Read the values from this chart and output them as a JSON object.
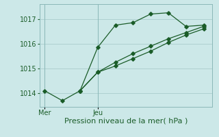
{
  "bg_color": "#cce8e8",
  "grid_color": "#aacccc",
  "line_color": "#1a5c28",
  "marker_color": "#1a5c28",
  "line1_x": [
    0,
    1,
    2,
    3,
    4,
    5,
    6,
    7,
    8,
    9
  ],
  "line1_y": [
    1014.1,
    1013.7,
    1014.1,
    1015.85,
    1016.75,
    1016.85,
    1017.2,
    1017.25,
    1016.7,
    1016.75
  ],
  "line2_x": [
    2,
    3,
    4,
    5,
    6,
    7,
    8,
    9
  ],
  "line2_y": [
    1014.1,
    1014.85,
    1015.1,
    1015.4,
    1015.7,
    1016.05,
    1016.35,
    1016.6
  ],
  "line3_x": [
    2,
    3,
    4,
    5,
    6,
    7,
    8,
    9
  ],
  "line3_y": [
    1014.1,
    1014.85,
    1015.25,
    1015.6,
    1015.9,
    1016.2,
    1016.45,
    1016.7
  ],
  "xlim": [
    -0.3,
    9.5
  ],
  "ylim": [
    1013.45,
    1017.6
  ],
  "yticks": [
    1014,
    1015,
    1016,
    1017
  ],
  "xtick_positions": [
    0,
    3
  ],
  "xtick_labels": [
    "Mer",
    "Jeu"
  ],
  "xlabel": "Pression niveau de la mer( hPa )",
  "xlabel_fontsize": 8,
  "tick_fontsize": 7,
  "figsize": [
    3.2,
    2.0
  ],
  "dpi": 100
}
